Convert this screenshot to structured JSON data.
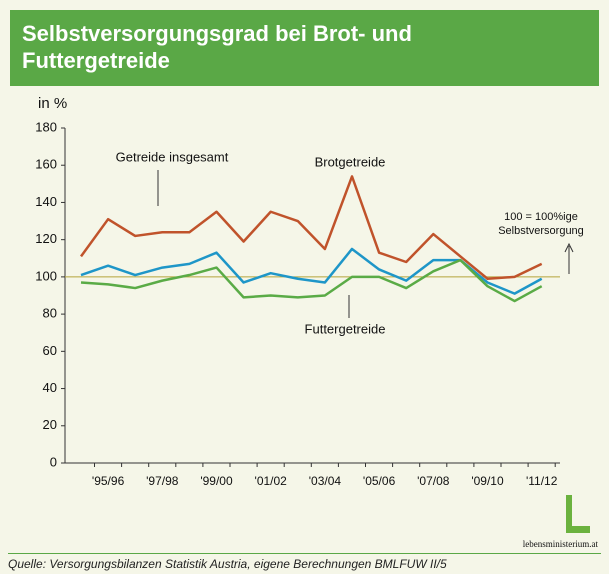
{
  "chart_data": {
    "type": "line",
    "title": "Selbstversorgungsgrad bei Brot- und Futtergetreide",
    "y_label": "in %",
    "categories": [
      null,
      "'95/96",
      null,
      "'97/98",
      null,
      "'99/00",
      null,
      "'01/02",
      null,
      "'03/04",
      null,
      "'05/06",
      null,
      "'07/08",
      null,
      "'09/10",
      null,
      "'11/12"
    ],
    "series": [
      {
        "name": "Brotgetreide",
        "color": "#c0532b",
        "values": [
          111,
          131,
          122,
          124,
          124,
          135,
          119,
          135,
          130,
          115,
          154,
          113,
          108,
          123,
          111,
          99,
          100,
          107
        ]
      },
      {
        "name": "Getreide insgesamt",
        "color": "#1e96c8",
        "values": [
          101,
          106,
          101,
          105,
          107,
          113,
          97,
          102,
          99,
          97,
          115,
          104,
          98,
          109,
          109,
          97,
          91,
          99
        ]
      },
      {
        "name": "Futtergetreide",
        "color": "#5aab46",
        "values": [
          97,
          96,
          94,
          98,
          101,
          105,
          89,
          90,
          89,
          90,
          100,
          100,
          94,
          103,
          109,
          95,
          87,
          95
        ]
      }
    ],
    "reference_line": 100,
    "reference_label": [
      "100 = 100%ige",
      "Selbstversorgung"
    ],
    "ylim": [
      0,
      180
    ],
    "yticks": [
      0,
      20,
      40,
      60,
      80,
      100,
      120,
      140,
      160,
      180
    ],
    "logo": "lebensministerium.at",
    "source": "Quelle: Versorgungsbilanzen Statistik Austria, eigene Berechnungen BMLFUW II/5"
  }
}
